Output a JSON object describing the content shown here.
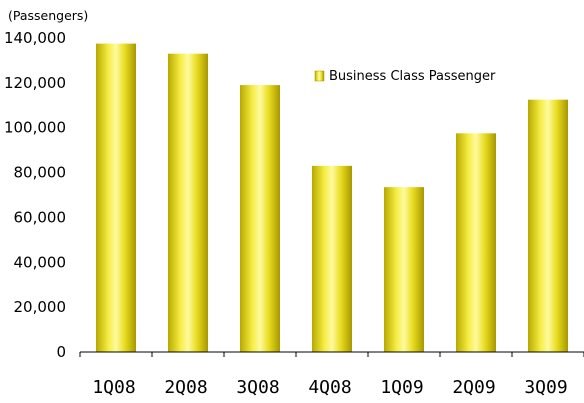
{
  "chart_data": {
    "type": "bar",
    "unit_label": "(Passengers)",
    "categories": [
      "1Q08",
      "2Q08",
      "3Q08",
      "4Q08",
      "1Q09",
      "2Q09",
      "3Q09"
    ],
    "series": [
      {
        "name": "Business Class Passenger",
        "values": [
          137500,
          133000,
          119000,
          83000,
          73500,
          97500,
          112500
        ]
      }
    ],
    "ylim": [
      0,
      140000
    ],
    "yticks": [
      0,
      20000,
      40000,
      60000,
      80000,
      100000,
      120000,
      140000
    ],
    "ytick_labels": [
      "0",
      "20,000",
      "40,000",
      "60,000",
      "80,000",
      "100,000",
      "120,000",
      "140,000"
    ],
    "bar_color": "#d8c800",
    "bar_highlight_color": "#fffaa0",
    "legend_position": "top-right",
    "grid": false
  }
}
